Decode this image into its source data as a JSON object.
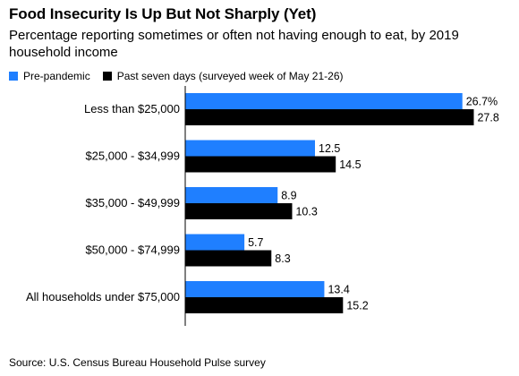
{
  "title": "Food Insecurity Is Up But Not Sharply (Yet)",
  "subtitle": "Percentage reporting sometimes or often not having enough to eat, by 2019 household income",
  "source": "Source: U.S. Census Bureau Household Pulse survey",
  "colors": {
    "pre": "#1f7fff",
    "past": "#000000"
  },
  "chart_data": {
    "type": "bar",
    "orientation": "horizontal",
    "categories": [
      "Less than $25,000",
      "$25,000 - $34,999",
      "$35,000 - $49,999",
      "$50,000 - $74,999",
      "All households under $75,000"
    ],
    "series": [
      {
        "name": "Pre-pandemic",
        "values": [
          26.7,
          12.5,
          8.9,
          5.7,
          13.4
        ],
        "labels": [
          "26.7%",
          "12.5",
          "8.9",
          "5.7",
          "13.4"
        ],
        "color": "#1f7fff"
      },
      {
        "name": "Past seven days (surveyed week of May 21-26)",
        "values": [
          27.8,
          14.5,
          10.3,
          8.3,
          15.2
        ],
        "labels": [
          "27.8",
          "14.5",
          "10.3",
          "8.3",
          "15.2"
        ],
        "color": "#000000"
      }
    ],
    "title": "Food Insecurity Is Up But Not Sharply (Yet)",
    "xlim": [
      0,
      30
    ],
    "grid": false,
    "legend": "top-left"
  }
}
